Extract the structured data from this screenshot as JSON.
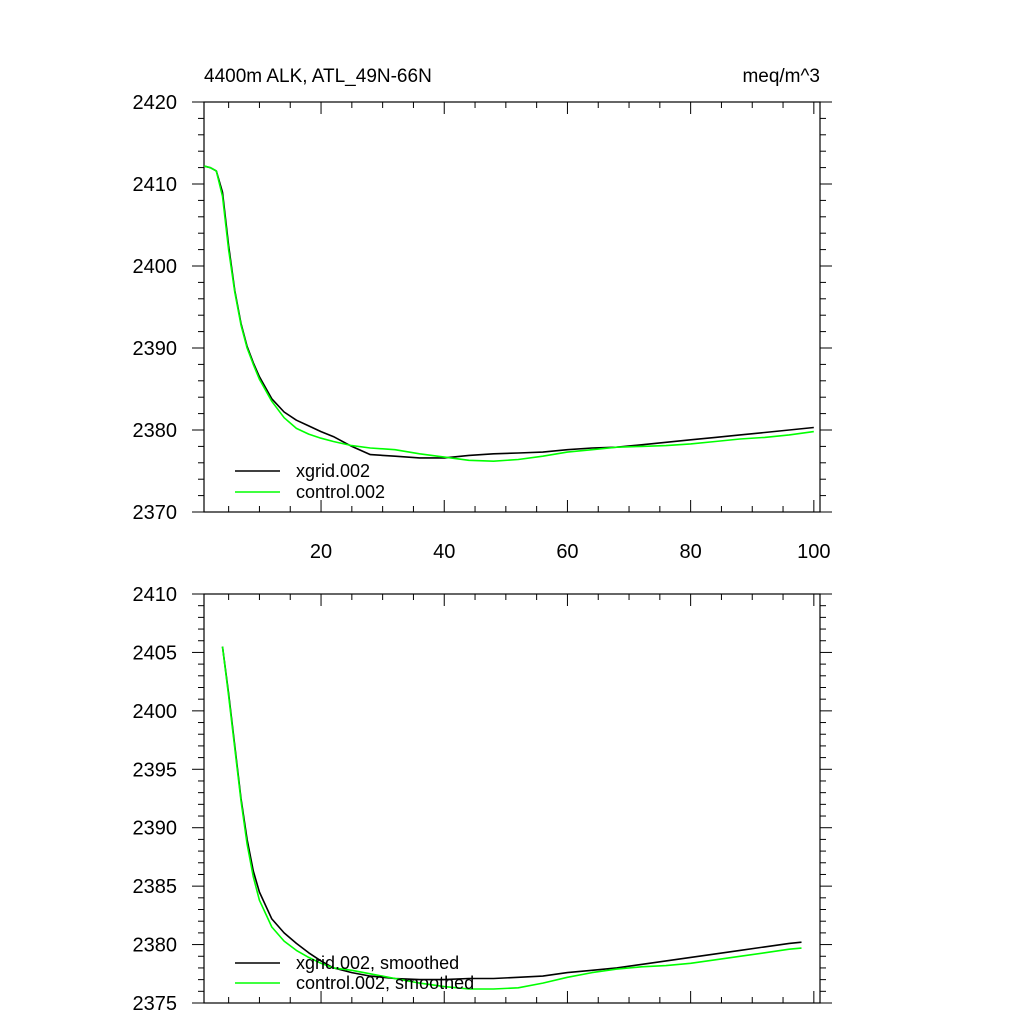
{
  "chart_data": [
    {
      "type": "line",
      "title": "4400m ALK, ATL_49N-66N",
      "units": "meq/m^3",
      "xlim": [
        1,
        101
      ],
      "ylim": [
        2370,
        2420
      ],
      "x_ticks": [
        20,
        40,
        60,
        80,
        100
      ],
      "y_ticks": [
        2370,
        2380,
        2390,
        2400,
        2410,
        2420
      ],
      "x_tick_labels_shown": true,
      "legend_position": "bottom-left",
      "series": [
        {
          "name": "xgrid.002",
          "color": "#000000",
          "x": [
            1,
            2,
            3,
            4,
            5,
            6,
            7,
            8,
            9,
            10,
            12,
            14,
            16,
            18,
            20,
            22,
            25,
            28,
            32,
            36,
            40,
            44,
            48,
            52,
            56,
            60,
            64,
            68,
            72,
            76,
            80,
            84,
            88,
            92,
            96,
            100
          ],
          "y": [
            2412.2,
            2412.0,
            2411.6,
            2409.0,
            2402.5,
            2397.0,
            2393.0,
            2390.2,
            2388.2,
            2386.5,
            2383.8,
            2382.2,
            2381.2,
            2380.5,
            2379.8,
            2379.2,
            2378.0,
            2377.0,
            2376.8,
            2376.6,
            2376.6,
            2376.9,
            2377.1,
            2377.2,
            2377.3,
            2377.6,
            2377.8,
            2377.9,
            2378.2,
            2378.5,
            2378.8,
            2379.1,
            2379.4,
            2379.7,
            2380.0,
            2380.3
          ]
        },
        {
          "name": "control.002",
          "color": "#00ff00",
          "x": [
            1,
            2,
            3,
            4,
            5,
            6,
            7,
            8,
            9,
            10,
            12,
            14,
            16,
            18,
            20,
            22,
            25,
            28,
            32,
            36,
            40,
            44,
            48,
            52,
            56,
            60,
            64,
            68,
            72,
            76,
            80,
            84,
            88,
            92,
            96,
            100
          ],
          "y": [
            2412.2,
            2412.0,
            2411.6,
            2408.5,
            2402.0,
            2396.8,
            2392.8,
            2390.0,
            2388.0,
            2386.2,
            2383.5,
            2381.5,
            2380.2,
            2379.5,
            2379.0,
            2378.6,
            2378.1,
            2377.8,
            2377.6,
            2377.1,
            2376.7,
            2376.3,
            2376.2,
            2376.4,
            2376.8,
            2377.3,
            2377.6,
            2377.9,
            2378.0,
            2378.1,
            2378.3,
            2378.6,
            2378.9,
            2379.1,
            2379.4,
            2379.8
          ]
        }
      ]
    },
    {
      "type": "line",
      "title": "",
      "xlim": [
        1,
        101
      ],
      "ylim": [
        2375,
        2410
      ],
      "x_ticks": [
        20,
        40,
        60,
        80,
        100
      ],
      "y_ticks": [
        2375,
        2380,
        2385,
        2390,
        2395,
        2400,
        2405,
        2410
      ],
      "x_tick_labels_shown": false,
      "legend_position": "bottom-left",
      "series": [
        {
          "name": "xgrid.002, smoothed",
          "color": "#000000",
          "x": [
            4,
            5,
            6,
            7,
            8,
            9,
            10,
            12,
            14,
            16,
            18,
            20,
            22,
            25,
            28,
            32,
            36,
            40,
            44,
            48,
            52,
            56,
            60,
            64,
            68,
            72,
            76,
            80,
            84,
            88,
            92,
            96,
            98
          ],
          "y": [
            2405.5,
            2401.5,
            2397.0,
            2392.5,
            2389.0,
            2386.3,
            2384.5,
            2382.2,
            2381.0,
            2380.1,
            2379.3,
            2378.6,
            2378.0,
            2377.6,
            2377.3,
            2377.1,
            2377.0,
            2377.0,
            2377.1,
            2377.1,
            2377.2,
            2377.3,
            2377.6,
            2377.8,
            2378.0,
            2378.3,
            2378.6,
            2378.9,
            2379.2,
            2379.5,
            2379.8,
            2380.1,
            2380.2
          ]
        },
        {
          "name": "control.002, smoothed",
          "color": "#00ff00",
          "x": [
            4,
            5,
            6,
            7,
            8,
            9,
            10,
            12,
            14,
            16,
            18,
            20,
            22,
            25,
            28,
            32,
            36,
            40,
            44,
            48,
            52,
            56,
            60,
            64,
            68,
            72,
            76,
            80,
            84,
            88,
            92,
            96,
            98
          ],
          "y": [
            2405.5,
            2401.3,
            2396.8,
            2392.3,
            2388.6,
            2385.8,
            2383.8,
            2381.5,
            2380.3,
            2379.5,
            2378.9,
            2378.4,
            2378.0,
            2377.8,
            2377.5,
            2377.1,
            2376.7,
            2376.4,
            2376.2,
            2376.2,
            2376.3,
            2376.7,
            2377.2,
            2377.6,
            2377.9,
            2378.1,
            2378.2,
            2378.4,
            2378.7,
            2379.0,
            2379.3,
            2379.6,
            2379.7
          ]
        }
      ]
    }
  ]
}
